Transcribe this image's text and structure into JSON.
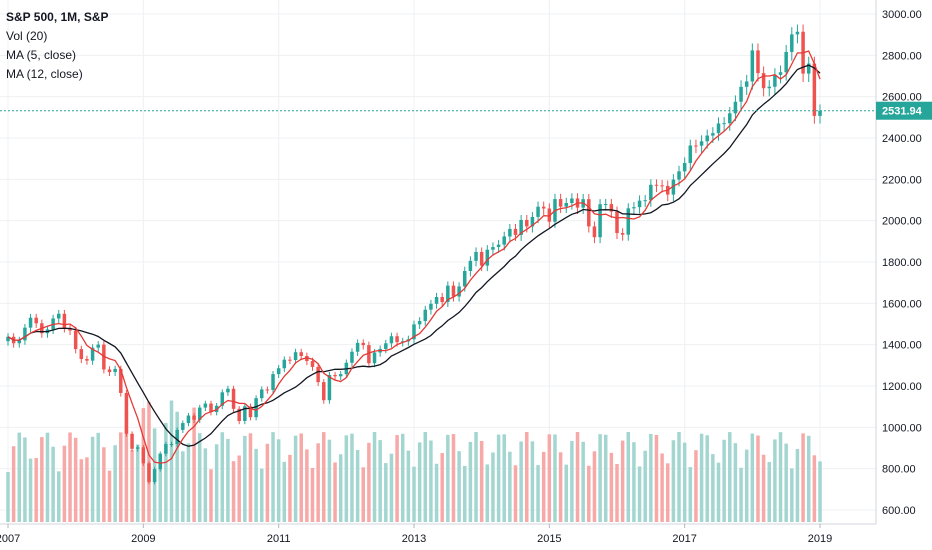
{
  "legend": {
    "title": "S&P 500, 1M, S&P",
    "vol": "Vol (20)",
    "ma5": "MA (5, close)",
    "ma12": "MA (12, close)"
  },
  "colors": {
    "up": "#26a69a",
    "down": "#ef5350",
    "vol_up": "#a3d6d1",
    "vol_down": "#f7a9a7",
    "ma5": "#e53935",
    "ma12": "#131722",
    "last_price_line": "#26a69a",
    "grid": "#eef0f3",
    "axis_text": "#131722"
  },
  "chart_data": {
    "type": "candlestick",
    "title": "S&P 500, 1M, S&P",
    "x_tick_labels": [
      "2007",
      "2009",
      "2011",
      "2013",
      "2015",
      "2017",
      "2019"
    ],
    "y_tick_labels": [
      "600.00",
      "800.00",
      "1000.00",
      "1200.00",
      "1400.00",
      "1600.00",
      "1800.00",
      "2000.00",
      "2200.00",
      "2400.00",
      "2600.00",
      "2800.00",
      "3000.00"
    ],
    "ylim": [
      560,
      3040
    ],
    "last_price": 2531.94,
    "last_price_label": "2531.94",
    "monthly_close": [
      [
        "2007-01",
        1438.2
      ],
      [
        "2007-02",
        1406.8
      ],
      [
        "2007-03",
        1420.9
      ],
      [
        "2007-04",
        1482.4
      ],
      [
        "2007-05",
        1530.6
      ],
      [
        "2007-06",
        1503.4
      ],
      [
        "2007-07",
        1455.3
      ],
      [
        "2007-08",
        1473.9
      ],
      [
        "2007-09",
        1526.8
      ],
      [
        "2007-10",
        1549.4
      ],
      [
        "2007-11",
        1481.1
      ],
      [
        "2007-12",
        1468.4
      ],
      [
        "2008-01",
        1378.6
      ],
      [
        "2008-02",
        1330.6
      ],
      [
        "2008-03",
        1322.7
      ],
      [
        "2008-04",
        1385.6
      ],
      [
        "2008-05",
        1400.4
      ],
      [
        "2008-06",
        1280.0
      ],
      [
        "2008-07",
        1267.4
      ],
      [
        "2008-08",
        1282.8
      ],
      [
        "2008-09",
        1166.4
      ],
      [
        "2008-10",
        968.8
      ],
      [
        "2008-11",
        896.2
      ],
      [
        "2008-12",
        903.3
      ],
      [
        "2009-01",
        825.9
      ],
      [
        "2009-02",
        735.1
      ],
      [
        "2009-03",
        797.9
      ],
      [
        "2009-04",
        872.8
      ],
      [
        "2009-05",
        919.1
      ],
      [
        "2009-06",
        919.3
      ],
      [
        "2009-07",
        987.5
      ],
      [
        "2009-08",
        1020.6
      ],
      [
        "2009-09",
        1057.1
      ],
      [
        "2009-10",
        1036.2
      ],
      [
        "2009-11",
        1095.6
      ],
      [
        "2009-12",
        1115.1
      ],
      [
        "2010-01",
        1073.9
      ],
      [
        "2010-02",
        1104.5
      ],
      [
        "2010-03",
        1169.4
      ],
      [
        "2010-04",
        1186.7
      ],
      [
        "2010-05",
        1089.4
      ],
      [
        "2010-06",
        1030.7
      ],
      [
        "2010-07",
        1101.6
      ],
      [
        "2010-08",
        1049.3
      ],
      [
        "2010-09",
        1141.2
      ],
      [
        "2010-10",
        1183.3
      ],
      [
        "2010-11",
        1180.6
      ],
      [
        "2010-12",
        1257.6
      ],
      [
        "2011-01",
        1286.1
      ],
      [
        "2011-02",
        1327.2
      ],
      [
        "2011-03",
        1325.8
      ],
      [
        "2011-04",
        1363.6
      ],
      [
        "2011-05",
        1345.2
      ],
      [
        "2011-06",
        1320.6
      ],
      [
        "2011-07",
        1292.3
      ],
      [
        "2011-08",
        1218.9
      ],
      [
        "2011-09",
        1131.4
      ],
      [
        "2011-10",
        1253.3
      ],
      [
        "2011-11",
        1247.0
      ],
      [
        "2011-12",
        1257.6
      ],
      [
        "2012-01",
        1312.4
      ],
      [
        "2012-02",
        1365.7
      ],
      [
        "2012-03",
        1408.5
      ],
      [
        "2012-04",
        1397.9
      ],
      [
        "2012-05",
        1310.3
      ],
      [
        "2012-06",
        1362.2
      ],
      [
        "2012-07",
        1379.3
      ],
      [
        "2012-08",
        1406.6
      ],
      [
        "2012-09",
        1440.7
      ],
      [
        "2012-10",
        1412.2
      ],
      [
        "2012-11",
        1416.2
      ],
      [
        "2012-12",
        1426.2
      ],
      [
        "2013-01",
        1498.1
      ],
      [
        "2013-02",
        1514.7
      ],
      [
        "2013-03",
        1569.2
      ],
      [
        "2013-04",
        1597.6
      ],
      [
        "2013-05",
        1630.7
      ],
      [
        "2013-06",
        1606.3
      ],
      [
        "2013-07",
        1685.7
      ],
      [
        "2013-08",
        1633.0
      ],
      [
        "2013-09",
        1681.6
      ],
      [
        "2013-10",
        1756.5
      ],
      [
        "2013-11",
        1805.8
      ],
      [
        "2013-12",
        1848.4
      ],
      [
        "2014-01",
        1782.6
      ],
      [
        "2014-02",
        1859.5
      ],
      [
        "2014-03",
        1872.3
      ],
      [
        "2014-04",
        1883.9
      ],
      [
        "2014-05",
        1923.6
      ],
      [
        "2014-06",
        1960.2
      ],
      [
        "2014-07",
        1931.0
      ],
      [
        "2014-08",
        2003.4
      ],
      [
        "2014-09",
        1972.3
      ],
      [
        "2014-10",
        2018.1
      ],
      [
        "2014-11",
        2067.6
      ],
      [
        "2014-12",
        2058.9
      ],
      [
        "2015-01",
        1994.9
      ],
      [
        "2015-02",
        2104.5
      ],
      [
        "2015-03",
        2067.9
      ],
      [
        "2015-04",
        2085.5
      ],
      [
        "2015-05",
        2107.4
      ],
      [
        "2015-06",
        2063.1
      ],
      [
        "2015-07",
        2104.0
      ],
      [
        "2015-08",
        1972.2
      ],
      [
        "2015-09",
        1920.0
      ],
      [
        "2015-10",
        2079.4
      ],
      [
        "2015-11",
        2080.4
      ],
      [
        "2015-12",
        2043.9
      ],
      [
        "2016-01",
        1940.2
      ],
      [
        "2016-02",
        1932.2
      ],
      [
        "2016-03",
        2059.7
      ],
      [
        "2016-04",
        2065.3
      ],
      [
        "2016-05",
        2096.9
      ],
      [
        "2016-06",
        2098.9
      ],
      [
        "2016-07",
        2173.6
      ],
      [
        "2016-08",
        2170.9
      ],
      [
        "2016-09",
        2168.3
      ],
      [
        "2016-10",
        2126.2
      ],
      [
        "2016-11",
        2198.8
      ],
      [
        "2016-12",
        2238.8
      ],
      [
        "2017-01",
        2278.9
      ],
      [
        "2017-02",
        2363.6
      ],
      [
        "2017-03",
        2362.7
      ],
      [
        "2017-04",
        2384.2
      ],
      [
        "2017-05",
        2411.8
      ],
      [
        "2017-06",
        2423.4
      ],
      [
        "2017-07",
        2470.3
      ],
      [
        "2017-08",
        2471.7
      ],
      [
        "2017-09",
        2519.4
      ],
      [
        "2017-10",
        2575.3
      ],
      [
        "2017-11",
        2647.6
      ],
      [
        "2017-12",
        2673.6
      ],
      [
        "2018-01",
        2823.8
      ],
      [
        "2018-02",
        2713.8
      ],
      [
        "2018-03",
        2640.9
      ],
      [
        "2018-04",
        2648.1
      ],
      [
        "2018-05",
        2705.3
      ],
      [
        "2018-06",
        2718.4
      ],
      [
        "2018-07",
        2816.3
      ],
      [
        "2018-08",
        2901.5
      ],
      [
        "2018-09",
        2914.0
      ],
      [
        "2018-10",
        2711.7
      ],
      [
        "2018-11",
        2760.2
      ],
      [
        "2018-12",
        2506.9
      ],
      [
        "2019-01",
        2531.9
      ]
    ]
  }
}
